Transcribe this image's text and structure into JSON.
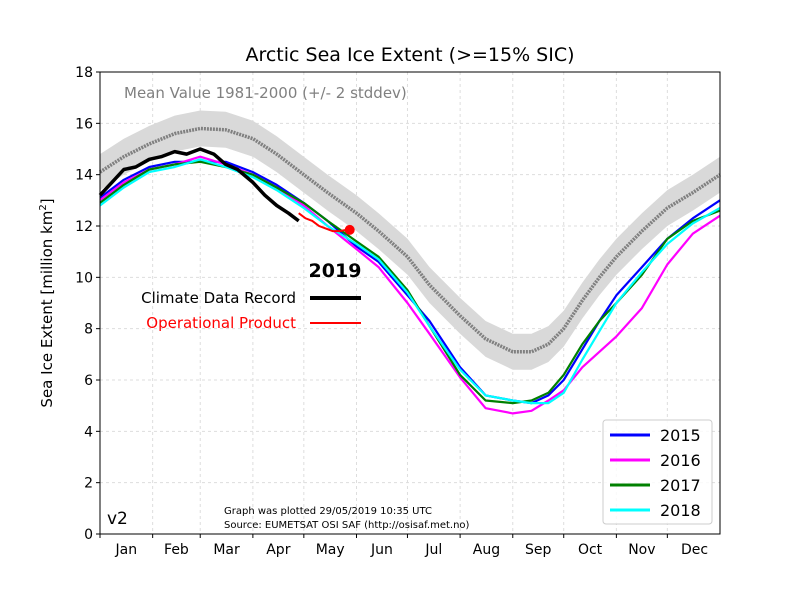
{
  "chart_data": {
    "type": "line",
    "title": "Arctic Sea Ice Extent (>=15% SIC)",
    "ylabel": "Sea Ice Extent [million km²]",
    "ylabel_main": "Sea Ice Extent [million km",
    "ylabel_sup": "2",
    "ylabel_end": "]",
    "xlabel": "",
    "ylim": [
      0,
      18
    ],
    "xlim": [
      1,
      366
    ],
    "yticks": [
      "0",
      "2",
      "4",
      "6",
      "8",
      "10",
      "12",
      "14",
      "16",
      "18"
    ],
    "grid": true,
    "months": [
      "Jan",
      "Feb",
      "Mar",
      "Apr",
      "May",
      "Jun",
      "Jul",
      "Aug",
      "Sep",
      "Oct",
      "Nov",
      "Dec"
    ],
    "month_starts": [
      1,
      32,
      60,
      91,
      121,
      152,
      182,
      213,
      244,
      274,
      305,
      335
    ],
    "version_label": "v2",
    "footer_line1": "Graph was plotted 29/05/2019 10:35 UTC",
    "footer_line2": "Source: EUMETSAT OSI SAF (http://osisaf.met.no)",
    "mean": {
      "label": "Mean Value 1981-2000 (+/- 2 stddev)",
      "color": "#808080",
      "band_color": "#d9d9d9",
      "x": [
        1,
        15,
        30,
        45,
        60,
        75,
        91,
        105,
        121,
        135,
        152,
        165,
        182,
        195,
        213,
        228,
        244,
        255,
        265,
        274,
        285,
        295,
        305,
        320,
        335,
        350,
        366
      ],
      "y": [
        14.1,
        14.7,
        15.2,
        15.6,
        15.8,
        15.75,
        15.4,
        14.8,
        14.0,
        13.3,
        12.5,
        11.8,
        10.8,
        9.7,
        8.5,
        7.6,
        7.1,
        7.1,
        7.4,
        8.0,
        9.1,
        10.0,
        10.8,
        11.8,
        12.7,
        13.3,
        14.0
      ],
      "stddev2": 0.7
    },
    "current_year": {
      "year": "2019",
      "cdr_label": "Climate Data Record",
      "cdr_color": "#000000",
      "op_label": "Operational Product",
      "op_color": "#ff0000",
      "cdr_x": [
        1,
        8,
        15,
        22,
        30,
        37,
        45,
        52,
        60,
        68,
        75,
        82,
        91,
        98,
        105,
        112,
        118
      ],
      "cdr_y": [
        13.2,
        13.7,
        14.2,
        14.3,
        14.6,
        14.7,
        14.9,
        14.8,
        15.0,
        14.8,
        14.4,
        14.2,
        13.7,
        13.2,
        12.8,
        12.5,
        12.2
      ],
      "op_x": [
        118,
        122,
        126,
        130,
        134,
        138,
        142,
        146,
        148
      ],
      "op_y": [
        12.5,
        12.3,
        12.2,
        12.0,
        11.9,
        11.8,
        11.8,
        11.85,
        11.85
      ],
      "marker_x": 148,
      "marker_y": 11.85
    },
    "series": [
      {
        "name": "2015",
        "color": "#0000ff",
        "x": [
          1,
          15,
          30,
          45,
          60,
          75,
          91,
          105,
          121,
          135,
          152,
          165,
          182,
          195,
          213,
          228,
          244,
          255,
          265,
          274,
          285,
          295,
          305,
          320,
          335,
          350,
          366
        ],
        "y": [
          13.1,
          13.8,
          14.3,
          14.5,
          14.5,
          14.5,
          14.1,
          13.6,
          12.9,
          12.2,
          11.2,
          10.6,
          9.3,
          8.3,
          6.5,
          5.4,
          5.2,
          5.1,
          5.4,
          6.0,
          7.2,
          8.3,
          9.3,
          10.4,
          11.5,
          12.3,
          13.0
        ]
      },
      {
        "name": "2016",
        "color": "#ff00ff",
        "x": [
          1,
          15,
          30,
          45,
          60,
          75,
          91,
          105,
          121,
          135,
          152,
          165,
          182,
          195,
          213,
          228,
          244,
          255,
          265,
          274,
          285,
          295,
          305,
          320,
          335,
          350,
          366
        ],
        "y": [
          13.0,
          13.7,
          14.2,
          14.4,
          14.7,
          14.4,
          14.0,
          13.5,
          12.8,
          12.0,
          11.1,
          10.4,
          9.0,
          7.8,
          6.1,
          4.9,
          4.7,
          4.8,
          5.2,
          5.6,
          6.5,
          7.1,
          7.7,
          8.8,
          10.5,
          11.7,
          12.4
        ]
      },
      {
        "name": "2017",
        "color": "#008000",
        "x": [
          1,
          15,
          30,
          45,
          60,
          75,
          91,
          105,
          121,
          135,
          152,
          165,
          182,
          195,
          213,
          228,
          244,
          255,
          265,
          274,
          285,
          295,
          305,
          320,
          335,
          350,
          366
        ],
        "y": [
          12.9,
          13.6,
          14.2,
          14.4,
          14.5,
          14.3,
          14.0,
          13.5,
          12.9,
          12.2,
          11.4,
          10.8,
          9.5,
          8.1,
          6.2,
          5.2,
          5.1,
          5.2,
          5.5,
          6.2,
          7.4,
          8.3,
          9.0,
          10.1,
          11.5,
          12.2,
          12.6
        ]
      },
      {
        "name": "2018",
        "color": "#00ffff",
        "x": [
          1,
          15,
          30,
          45,
          60,
          75,
          91,
          105,
          121,
          135,
          152,
          165,
          182,
          195,
          213,
          228,
          244,
          255,
          265,
          274,
          285,
          295,
          305,
          320,
          335,
          350,
          366
        ],
        "y": [
          12.8,
          13.5,
          14.1,
          14.3,
          14.6,
          14.3,
          13.9,
          13.4,
          12.7,
          12.0,
          11.3,
          10.7,
          9.4,
          8.1,
          6.4,
          5.4,
          5.2,
          5.1,
          5.1,
          5.5,
          6.8,
          7.9,
          9.0,
          10.2,
          11.3,
          12.1,
          12.7
        ]
      }
    ]
  }
}
